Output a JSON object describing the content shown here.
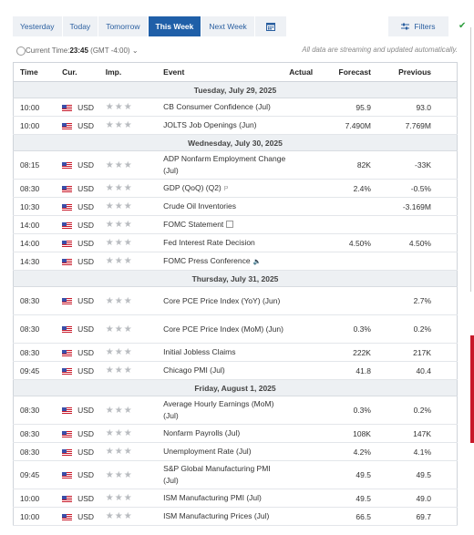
{
  "tabs": {
    "yesterday": "Yesterday",
    "today": "Today",
    "tomorrow": "Tomorrow",
    "this_week": "This Week",
    "next_week": "Next Week"
  },
  "filters_label": "Filters",
  "time": {
    "label": "Current Time:",
    "value": "23:45",
    "zone": "(GMT -4:00)",
    "note": "All data are streaming and updated automatically."
  },
  "columns": {
    "time": "Time",
    "cur": "Cur.",
    "imp": "Imp.",
    "event": "Event",
    "actual": "Actual",
    "forecast": "Forecast",
    "previous": "Previous"
  },
  "days": [
    {
      "date": "Tuesday, July 29, 2025",
      "events": [
        {
          "time": "10:00",
          "cur": "USD",
          "event": "CB Consumer Confidence (Jul)",
          "actual": "",
          "forecast": "95.9",
          "previous": "93.0"
        },
        {
          "time": "10:00",
          "cur": "USD",
          "event": "JOLTS Job Openings (Jun)",
          "actual": "",
          "forecast": "7.490M",
          "previous": "7.769M"
        }
      ]
    },
    {
      "date": "Wednesday, July 30, 2025",
      "events": [
        {
          "time": "08:15",
          "cur": "USD",
          "event": "ADP Nonfarm Employment Change (Jul)",
          "actual": "",
          "forecast": "82K",
          "previous": "-33K"
        },
        {
          "time": "08:30",
          "cur": "USD",
          "event": "GDP (QoQ) (Q2)",
          "actual": "",
          "forecast": "2.4%",
          "previous": "-0.5%"
        },
        {
          "time": "10:30",
          "cur": "USD",
          "event": "Crude Oil Inventories",
          "actual": "",
          "forecast": "",
          "previous": "-3.169M"
        },
        {
          "time": "14:00",
          "cur": "USD",
          "event": "FOMC Statement",
          "actual": "",
          "forecast": "",
          "previous": ""
        },
        {
          "time": "14:00",
          "cur": "USD",
          "event": "Fed Interest Rate Decision",
          "actual": "",
          "forecast": "4.50%",
          "previous": "4.50%"
        },
        {
          "time": "14:30",
          "cur": "USD",
          "event": "FOMC Press Conference",
          "actual": "",
          "forecast": "",
          "previous": ""
        }
      ]
    },
    {
      "date": "Thursday, July 31, 2025",
      "events": [
        {
          "time": "08:30",
          "cur": "USD",
          "event": "Core PCE Price Index (YoY) (Jun)",
          "actual": "",
          "forecast": "",
          "previous": "2.7%"
        },
        {
          "time": "08:30",
          "cur": "USD",
          "event": "Core PCE Price Index (MoM) (Jun)",
          "actual": "",
          "forecast": "0.3%",
          "previous": "0.2%"
        },
        {
          "time": "08:30",
          "cur": "USD",
          "event": "Initial Jobless Claims",
          "actual": "",
          "forecast": "222K",
          "previous": "217K"
        },
        {
          "time": "09:45",
          "cur": "USD",
          "event": "Chicago PMI (Jul)",
          "actual": "",
          "forecast": "41.8",
          "previous": "40.4"
        }
      ]
    },
    {
      "date": "Friday, August 1, 2025",
      "events": [
        {
          "time": "08:30",
          "cur": "USD",
          "event": "Average Hourly Earnings (MoM) (Jul)",
          "actual": "",
          "forecast": "0.3%",
          "previous": "0.2%"
        },
        {
          "time": "08:30",
          "cur": "USD",
          "event": "Nonfarm Payrolls (Jul)",
          "actual": "",
          "forecast": "108K",
          "previous": "147K"
        },
        {
          "time": "08:30",
          "cur": "USD",
          "event": "Unemployment Rate (Jul)",
          "actual": "",
          "forecast": "4.2%",
          "previous": "4.1%"
        },
        {
          "time": "09:45",
          "cur": "USD",
          "event": "S&P Global Manufacturing PMI (Jul)",
          "actual": "",
          "forecast": "49.5",
          "previous": "49.5"
        },
        {
          "time": "10:00",
          "cur": "USD",
          "event": "ISM Manufacturing PMI (Jul)",
          "actual": "",
          "forecast": "49.5",
          "previous": "49.0"
        },
        {
          "time": "10:00",
          "cur": "USD",
          "event": "ISM Manufacturing Prices (Jul)",
          "actual": "",
          "forecast": "66.5",
          "previous": "69.7"
        }
      ]
    }
  ],
  "importance": "★★★",
  "colors": {
    "accent": "#1f5fa8",
    "check": "#2e9e3e",
    "side_red": "#c8192a"
  }
}
